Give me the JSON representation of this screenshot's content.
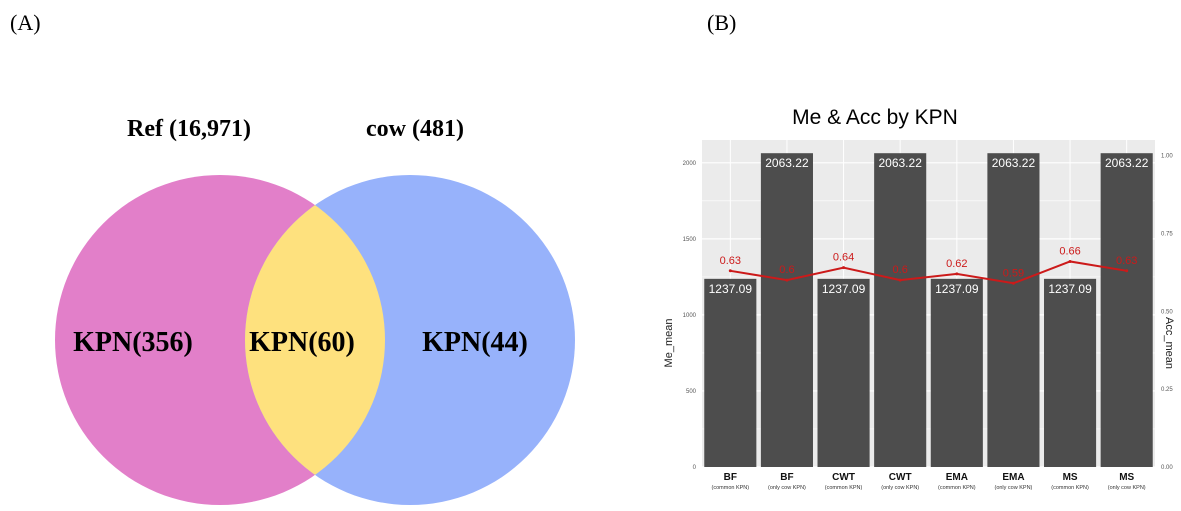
{
  "panels": {
    "a_label": "(A)",
    "b_label": "(B)"
  },
  "venn": {
    "left_set_label": "Ref (16,971)",
    "right_set_label": "cow (481)",
    "left_only_label": "KPN(356)",
    "overlap_label": "KPN(60)",
    "right_only_label": "KPN(44)",
    "colors": {
      "left": "#e27fc9",
      "right": "#97b2fb",
      "overlap": "#fee17e"
    }
  },
  "chart_data": {
    "type": "bar",
    "title": "Me & Acc by KPN",
    "ylabel": "Me_mean",
    "ylabel_right": "Acc_mean",
    "ylim": [
      0,
      2150
    ],
    "ylim_right": [
      0,
      1.05
    ],
    "yticks": [
      0,
      500,
      1000,
      1500,
      2000
    ],
    "yticks_right": [
      0,
      0.25,
      0.5,
      0.75,
      1.0
    ],
    "ytick_labels": [
      "0",
      "500",
      "1000",
      "1500",
      "2000"
    ],
    "ytick_labels_right": [
      "0.00",
      "0.25",
      "0.50",
      "0.75",
      "1.00"
    ],
    "categories": [
      "BF",
      "BF",
      "CWT",
      "CWT",
      "EMA",
      "EMA",
      "MS",
      "MS"
    ],
    "subcategories": [
      "(common KPN)",
      "(only cow KPN)",
      "(common KPN)",
      "(only cow KPN)",
      "(common KPN)",
      "(only cow KPN)",
      "(common KPN)",
      "(only cow KPN)"
    ],
    "bar_values": [
      1237.09,
      2063.22,
      1237.09,
      2063.22,
      1237.09,
      2063.22,
      1237.09,
      2063.22
    ],
    "bar_labels": [
      "1237.09",
      "2063.22",
      "1237.09",
      "2063.22",
      "1237.09",
      "2063.22",
      "1237.09",
      "2063.22"
    ],
    "line_values": [
      0.63,
      0.6,
      0.64,
      0.6,
      0.62,
      0.59,
      0.66,
      0.63
    ],
    "line_labels": [
      "0.63",
      "0.6",
      "0.64",
      "0.6",
      "0.62",
      "0.59",
      "0.66",
      "0.63"
    ],
    "grid": true,
    "colors": {
      "bar": "#4d4d4d",
      "line": "#cc1a1a",
      "panel_bg": "#ebebeb",
      "grid": "#ffffff"
    }
  }
}
